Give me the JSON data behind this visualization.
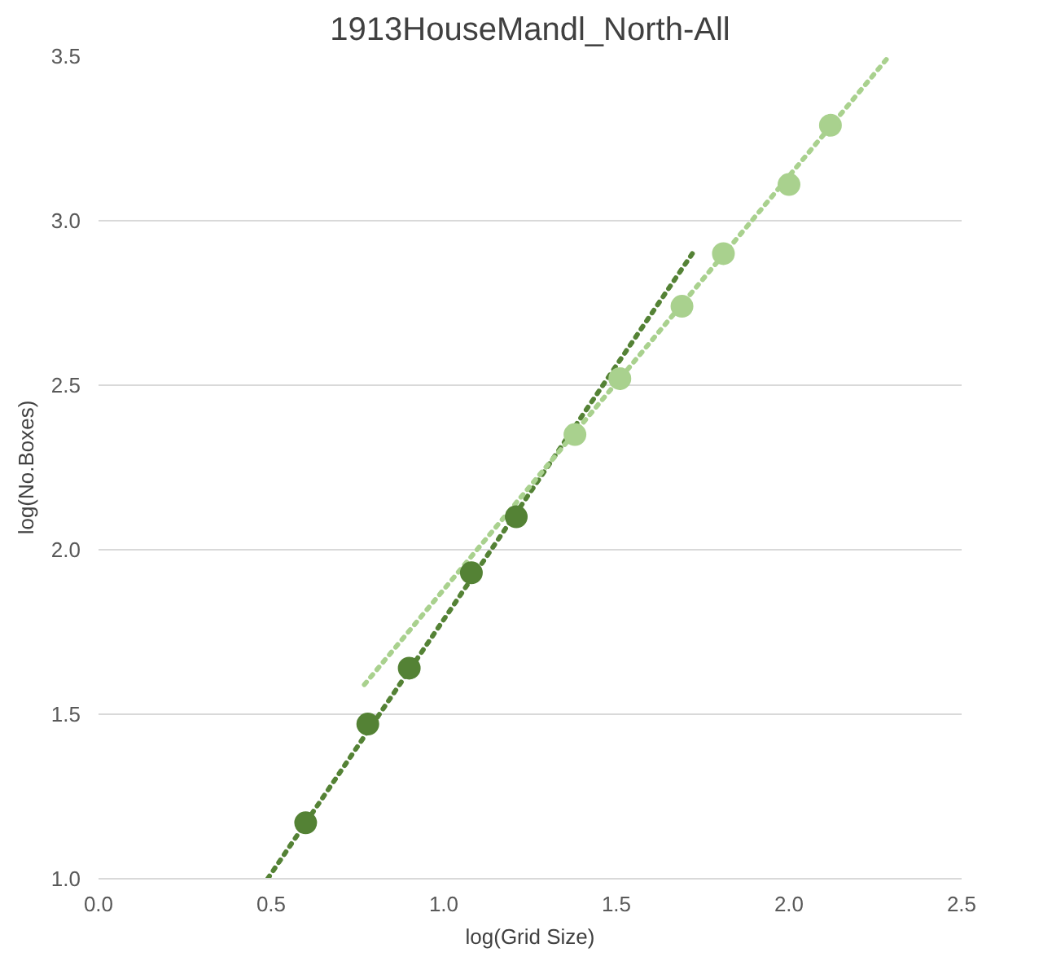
{
  "chart_data": {
    "type": "scatter",
    "title": "1913HouseMandl_North-All",
    "xlabel": "log(Grid Size)",
    "ylabel": "log(No.Boxes)",
    "xlim": [
      0,
      2.5
    ],
    "xticks": [
      {
        "value": 0,
        "label": "0.0"
      },
      {
        "value": 0.5,
        "label": "0.5"
      },
      {
        "value": 1,
        "label": "1.0"
      },
      {
        "value": 1.5,
        "label": "1.5"
      },
      {
        "value": 2,
        "label": "2.0"
      },
      {
        "value": 2.5,
        "label": "2.5"
      }
    ],
    "ylim": [
      1,
      3.5
    ],
    "yticks": [
      {
        "value": 1,
        "label": "1.0"
      },
      {
        "value": 1.5,
        "label": "1.5"
      },
      {
        "value": 2,
        "label": "2.0"
      },
      {
        "value": 2.5,
        "label": "2.5"
      },
      {
        "value": 3,
        "label": "3.0"
      },
      {
        "value": 3.5,
        "label": "3.5"
      }
    ],
    "grid": "y",
    "marker": "circle",
    "series": [
      {
        "type": "line",
        "color": "#548235",
        "marker": "none",
        "line_style": "dotted",
        "x": [
          0.49,
          1.72
        ],
        "values": [
          1.0,
          2.9
        ]
      },
      {
        "type": "line",
        "color": "#a9d18e",
        "marker": "none",
        "line_style": "dotted",
        "x": [
          0.77,
          2.29
        ],
        "values": [
          1.59,
          3.5
        ]
      },
      {
        "color": "#548235",
        "x": [
          0.6,
          0.78,
          0.9,
          1.08,
          1.21
        ],
        "values": [
          1.17,
          1.47,
          1.64,
          1.93,
          2.1
        ]
      },
      {
        "color": "#a9d18e",
        "x": [
          1.38,
          1.51,
          1.69,
          1.81,
          2.0,
          2.12
        ],
        "values": [
          2.35,
          2.52,
          2.74,
          2.9,
          3.11,
          3.29
        ]
      }
    ]
  }
}
